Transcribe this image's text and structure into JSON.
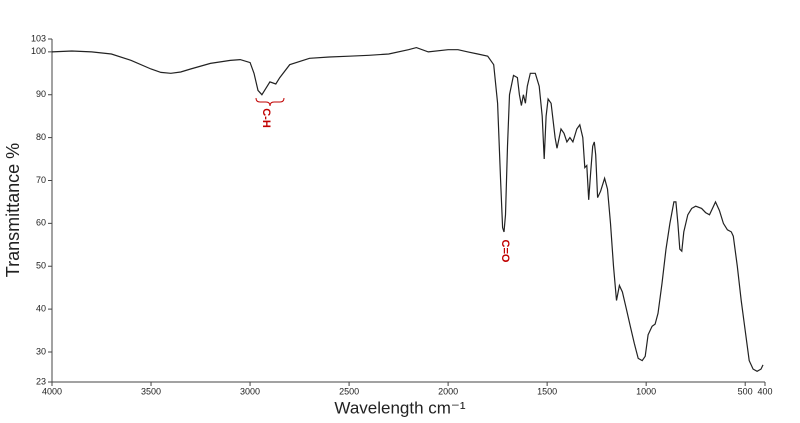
{
  "chart_data": {
    "type": "line",
    "x_label": "Wavelength cm⁻¹",
    "y_label": "Transmittance %",
    "annotations": [
      "C-H",
      "C=O"
    ],
    "xlim": [
      4000,
      400
    ],
    "xticks": [
      4000,
      3500,
      3000,
      2500,
      2000,
      1500,
      1000,
      500,
      400
    ],
    "ylim": [
      23,
      103
    ],
    "yticks": [
      23,
      30,
      40,
      50,
      60,
      70,
      80,
      90,
      100,
      103
    ],
    "series": [
      {
        "color": "#222222",
        "x": [
          4000,
          3900,
          3800,
          3700,
          3600,
          3500,
          3450,
          3400,
          3350,
          3300,
          3200,
          3100,
          3050,
          3000,
          2980,
          2960,
          2940,
          2920,
          2900,
          2870,
          2850,
          2800,
          2700,
          2600,
          2500,
          2400,
          2300,
          2200,
          2160,
          2100,
          2000,
          1950,
          1900,
          1850,
          1800,
          1770,
          1750,
          1735,
          1725,
          1718,
          1710,
          1700,
          1690,
          1670,
          1650,
          1640,
          1630,
          1620,
          1610,
          1600,
          1585,
          1560,
          1540,
          1525,
          1515,
          1505,
          1495,
          1480,
          1460,
          1450,
          1430,
          1415,
          1400,
          1385,
          1370,
          1350,
          1335,
          1320,
          1310,
          1300,
          1290,
          1280,
          1270,
          1262,
          1255,
          1245,
          1230,
          1210,
          1195,
          1180,
          1165,
          1150,
          1135,
          1120,
          1100,
          1080,
          1060,
          1040,
          1020,
          1005,
          990,
          970,
          955,
          940,
          920,
          900,
          880,
          860,
          850,
          840,
          830,
          820,
          810,
          790,
          770,
          750,
          720,
          700,
          680,
          660,
          650,
          630,
          610,
          590,
          570,
          560,
          540,
          520,
          500,
          480,
          460,
          440,
          420,
          410
        ],
        "values": [
          100,
          100.2,
          100,
          99.5,
          98,
          96,
          95.2,
          95,
          95.3,
          96,
          97.3,
          98,
          98.2,
          97.5,
          95,
          91,
          90,
          91.5,
          93,
          92.5,
          94,
          97,
          98.5,
          98.8,
          99,
          99.2,
          99.5,
          100.5,
          101,
          100,
          100.5,
          100.5,
          100,
          99.5,
          99,
          97,
          88,
          70,
          59,
          58,
          62,
          78,
          90,
          94.5,
          94,
          90,
          87.5,
          90,
          88,
          92,
          95,
          95,
          92,
          85,
          75,
          85,
          89,
          88,
          80,
          77.5,
          82,
          81,
          79,
          80,
          79,
          82,
          83,
          80,
          73,
          73.5,
          65.5,
          72,
          78,
          79,
          76,
          66,
          67.5,
          70.5,
          68,
          60,
          50,
          42,
          45.5,
          44,
          40,
          36,
          32,
          28.5,
          28,
          29,
          34,
          36,
          36.5,
          39,
          46,
          54,
          60,
          65,
          65,
          60,
          54,
          53.5,
          58,
          62,
          63.5,
          64,
          63.5,
          62.5,
          62,
          64,
          65,
          63,
          60,
          58.5,
          58,
          57,
          50,
          42,
          35,
          28,
          26,
          25.5,
          26,
          27
        ]
      }
    ]
  }
}
